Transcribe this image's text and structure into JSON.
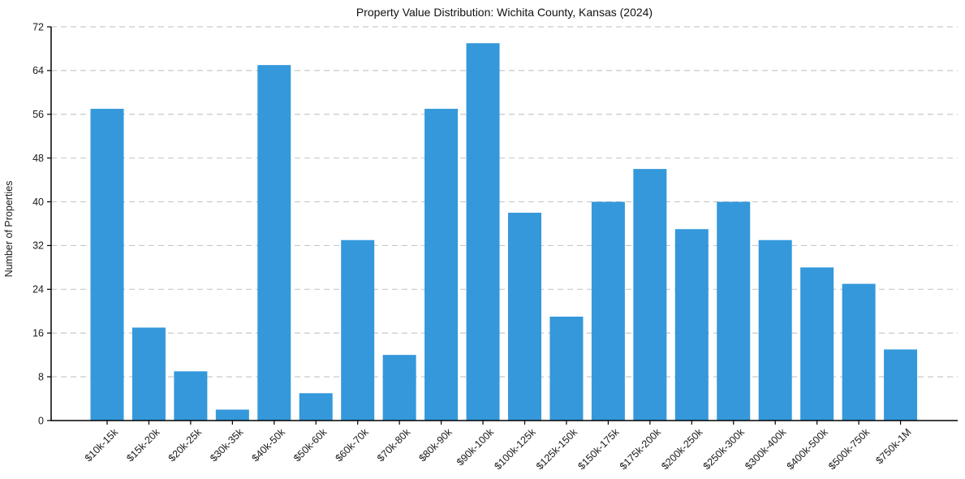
{
  "chart_data": {
    "type": "bar",
    "title": "Property Value Distribution: Wichita County, Kansas (2024)",
    "xlabel": "",
    "ylabel": "Number of Properties",
    "categories": [
      "$10k-15k",
      "$15k-20k",
      "$20k-25k",
      "$30k-35k",
      "$40k-50k",
      "$50k-60k",
      "$60k-70k",
      "$70k-80k",
      "$80k-90k",
      "$90k-100k",
      "$100k-125k",
      "$125k-150k",
      "$150k-175k",
      "$175k-200k",
      "$200k-250k",
      "$250k-300k",
      "$300k-400k",
      "$400k-500k",
      "$500k-750k",
      "$750k-1M"
    ],
    "values": [
      57,
      17,
      9,
      2,
      65,
      5,
      33,
      12,
      57,
      69,
      38,
      19,
      40,
      46,
      35,
      40,
      33,
      28,
      25,
      13
    ],
    "yticks": [
      0,
      8,
      16,
      24,
      32,
      40,
      48,
      56,
      64,
      72
    ],
    "ylim": [
      0,
      72
    ],
    "grid": true,
    "grid_axis": "y",
    "grid_line_style": "dashed",
    "legend": null,
    "colors": {
      "bar": "#3498db",
      "grid": "#c9c9c9",
      "axis": "#000000",
      "text": "#1a1a1a",
      "background": "#ffffff"
    }
  }
}
